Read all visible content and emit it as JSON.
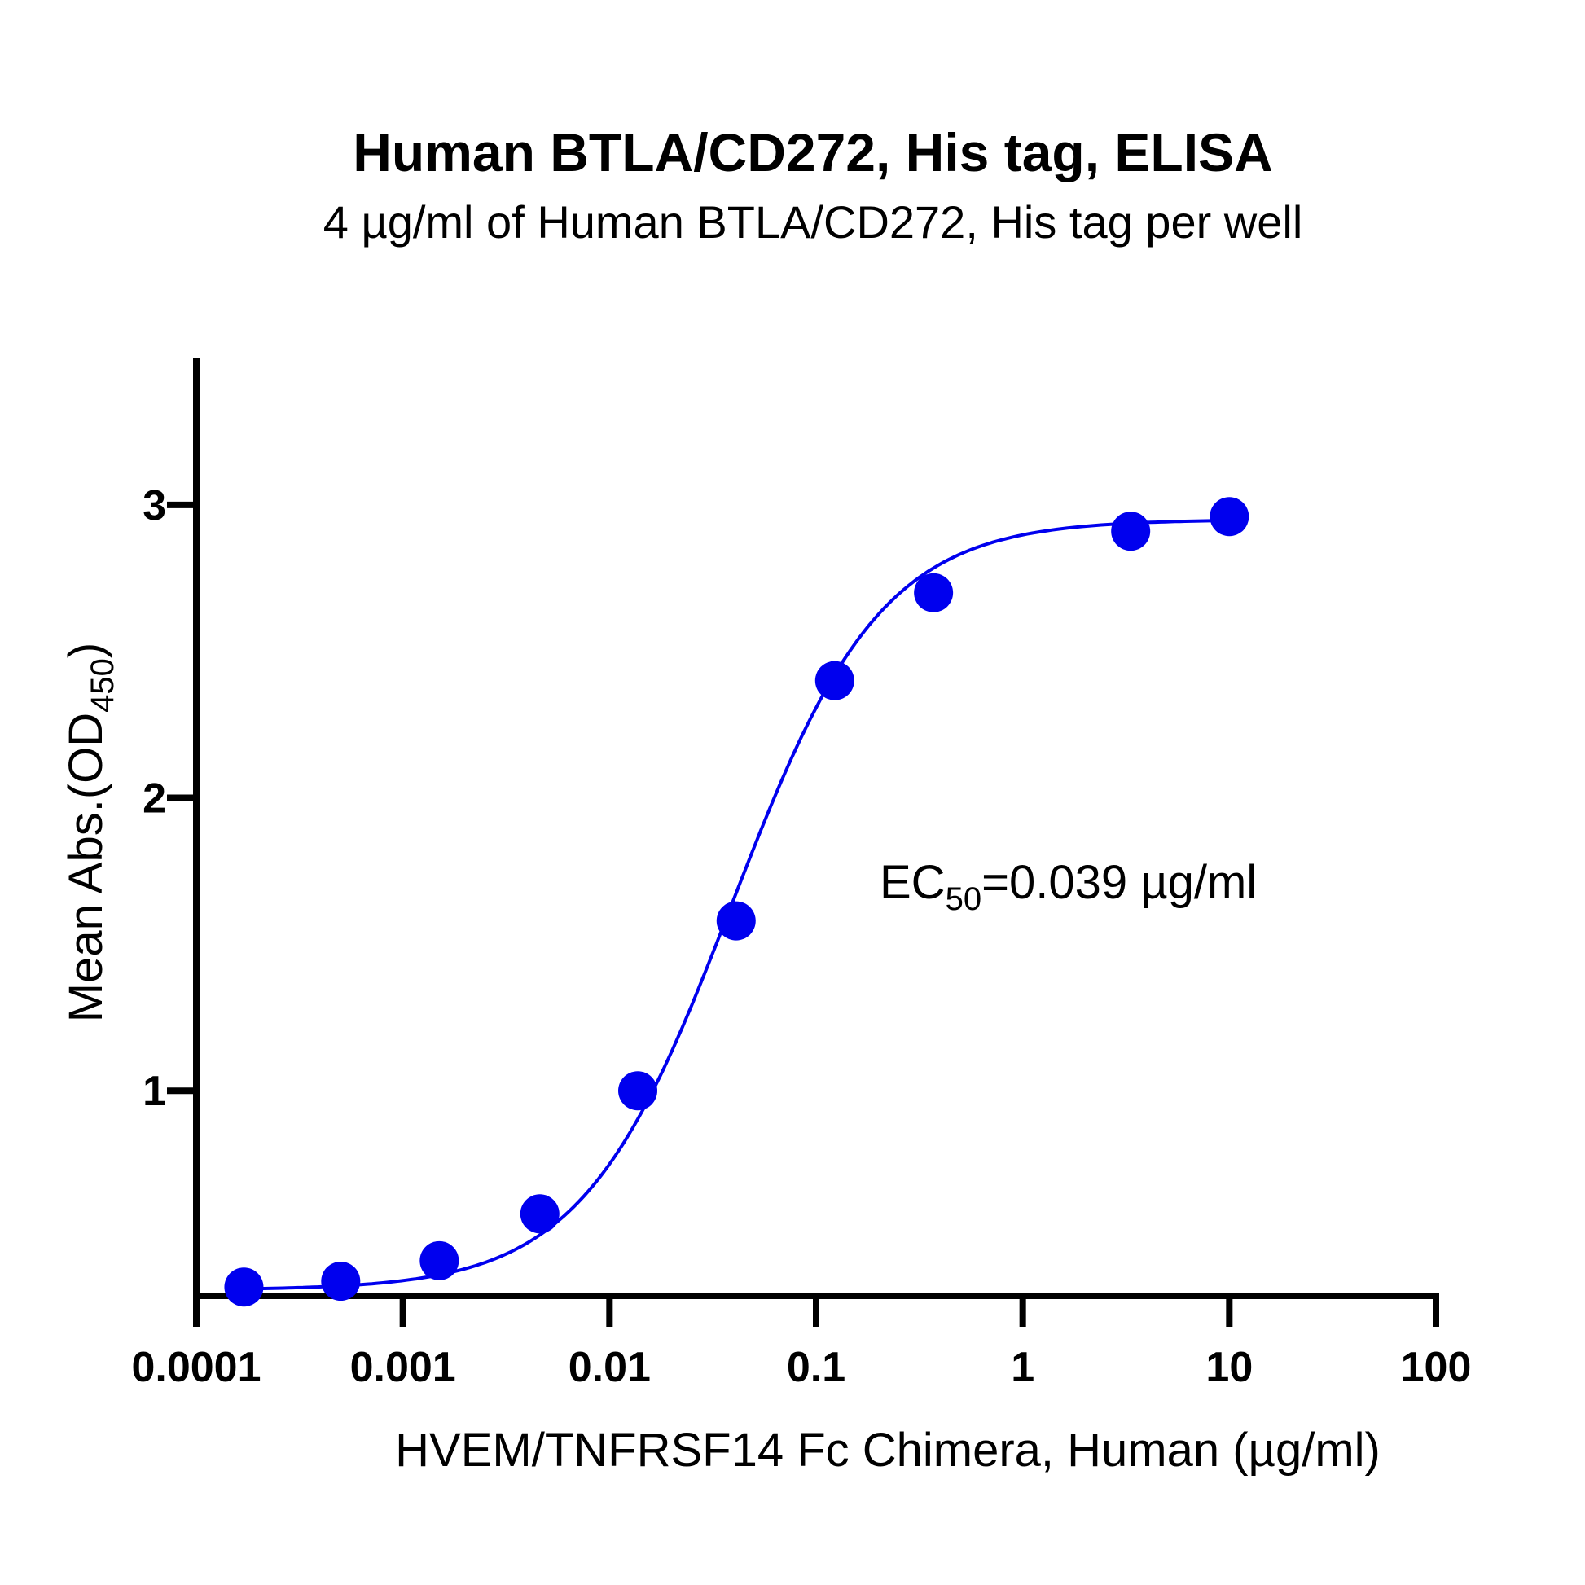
{
  "chart_data": {
    "type": "scatter",
    "title": "Human BTLA/CD272, His tag, ELISA",
    "subtitle": "4 µg/ml of Human BTLA/CD272, His tag per well",
    "xlabel": "HVEM/TNFRSF14 Fc Chimera, Human (µg/ml)",
    "ylabel": {
      "main": "Mean Abs.(OD",
      "sub": "450",
      "end": ")"
    },
    "x_scale": "log",
    "xlim": [
      0.0001,
      100
    ],
    "ylim": [
      0.3,
      3.5
    ],
    "x_ticks": [
      {
        "value": 0.0001,
        "label": "0.0001"
      },
      {
        "value": 0.001,
        "label": "0.001"
      },
      {
        "value": 0.01,
        "label": "0.01"
      },
      {
        "value": 0.1,
        "label": "0.1"
      },
      {
        "value": 1,
        "label": "1"
      },
      {
        "value": 10,
        "label": "10"
      },
      {
        "value": 100,
        "label": "100"
      }
    ],
    "y_ticks": [
      {
        "value": 1,
        "label": "1"
      },
      {
        "value": 2,
        "label": "2"
      },
      {
        "value": 3,
        "label": "3"
      }
    ],
    "grid": false,
    "series": [
      {
        "color": "#0000ee",
        "points": [
          {
            "x": 0.00017,
            "y": 0.33
          },
          {
            "x": 0.0005,
            "y": 0.35
          },
          {
            "x": 0.0015,
            "y": 0.42
          },
          {
            "x": 0.0046,
            "y": 0.58
          },
          {
            "x": 0.0137,
            "y": 1.0
          },
          {
            "x": 0.041,
            "y": 1.58
          },
          {
            "x": 0.123,
            "y": 2.4
          },
          {
            "x": 0.37,
            "y": 2.7
          },
          {
            "x": 3.33,
            "y": 2.91
          },
          {
            "x": 10,
            "y": 2.96
          }
        ],
        "fit": {
          "model": "4PL",
          "bottom": 0.32,
          "top": 2.95,
          "ec50": 0.039,
          "hill": 1.2
        }
      }
    ],
    "annotation": {
      "prefix": "EC",
      "sub": "50",
      "suffix": "=0.039 µg/ml"
    }
  }
}
